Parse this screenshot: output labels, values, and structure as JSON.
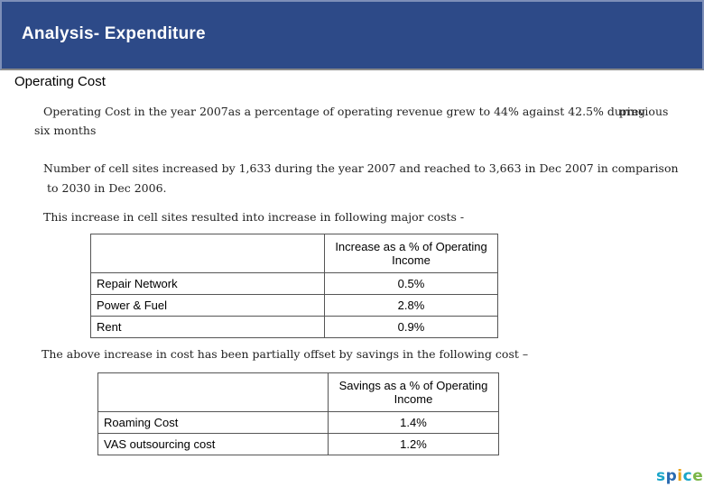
{
  "header": {
    "title": "Analysis- Expenditure"
  },
  "section": {
    "heading": "Operating Cost"
  },
  "paragraphs": {
    "p1_line1": "Operating Cost in the year 2007as a percentage of operating revenue grew to 44% against 42.5% during",
    "p1_word": "previous",
    "p1_line2": "six months",
    "p2_line1": "Number of cell sites increased by 1,633 during the year 2007 and reached to 3,663 in Dec 2007 in comparison",
    "p2_line2": "to 2030 in Dec 2006.",
    "p3": "This increase in cell sites resulted into increase in following major costs -",
    "p4": "The above increase in cost has been partially offset by savings in the following cost –"
  },
  "increase_table": {
    "header": "Increase as a % of Operating Income",
    "rows": [
      {
        "label": "Repair Network",
        "value": "0.5%"
      },
      {
        "label": "Power & Fuel",
        "value": "2.8%"
      },
      {
        "label": "Rent",
        "value": "0.9%"
      }
    ]
  },
  "savings_table": {
    "header": "Savings as a % of Operating Income",
    "rows": [
      {
        "label": "Roaming Cost",
        "value": "1.4%"
      },
      {
        "label": "VAS outsourcing cost",
        "value": "1.2%"
      }
    ]
  },
  "logo": {
    "text": "spice",
    "colors": [
      "#1aa5c8",
      "#2a6ab0",
      "#e8a21a",
      "#1aa5c8",
      "#7ab648"
    ]
  }
}
